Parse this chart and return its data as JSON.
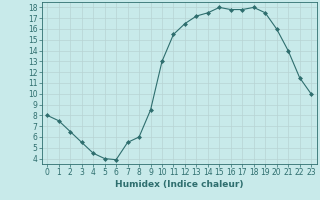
{
  "x": [
    0,
    1,
    2,
    3,
    4,
    5,
    6,
    7,
    8,
    9,
    10,
    11,
    12,
    13,
    14,
    15,
    16,
    17,
    18,
    19,
    20,
    21,
    22,
    23
  ],
  "y": [
    8,
    7.5,
    6.5,
    5.5,
    4.5,
    4.0,
    3.9,
    5.5,
    6.0,
    8.5,
    13.0,
    15.5,
    16.5,
    17.2,
    17.5,
    18.0,
    17.8,
    17.8,
    18.0,
    17.5,
    16.0,
    14.0,
    11.5,
    10.0
  ],
  "line_color": "#2e6e6e",
  "marker": "D",
  "marker_size": 2,
  "bg_color": "#c8eaea",
  "grid_color": "#b8d4d4",
  "xlabel": "Humidex (Indice chaleur)",
  "xlim": [
    -0.5,
    23.5
  ],
  "ylim": [
    3.5,
    18.5
  ],
  "yticks": [
    4,
    5,
    6,
    7,
    8,
    9,
    10,
    11,
    12,
    13,
    14,
    15,
    16,
    17,
    18
  ],
  "xticks": [
    0,
    1,
    2,
    3,
    4,
    5,
    6,
    7,
    8,
    9,
    10,
    11,
    12,
    13,
    14,
    15,
    16,
    17,
    18,
    19,
    20,
    21,
    22,
    23
  ],
  "tick_color": "#2e6e6e",
  "label_color": "#2e6e6e",
  "xlabel_fontsize": 6.5,
  "tick_fontsize": 5.5
}
